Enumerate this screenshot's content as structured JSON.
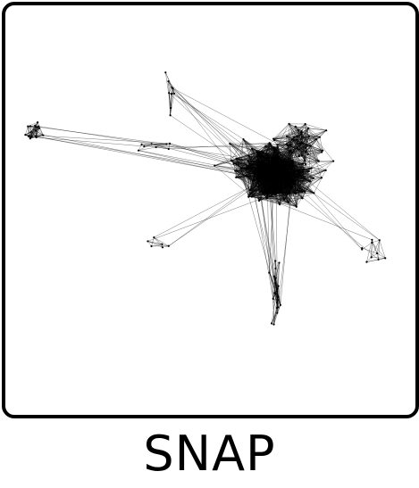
{
  "title": "SNAP",
  "colors": {
    "frame": "#000000",
    "edge": "#000000",
    "node": "#000000",
    "background": "#ffffff"
  }
}
